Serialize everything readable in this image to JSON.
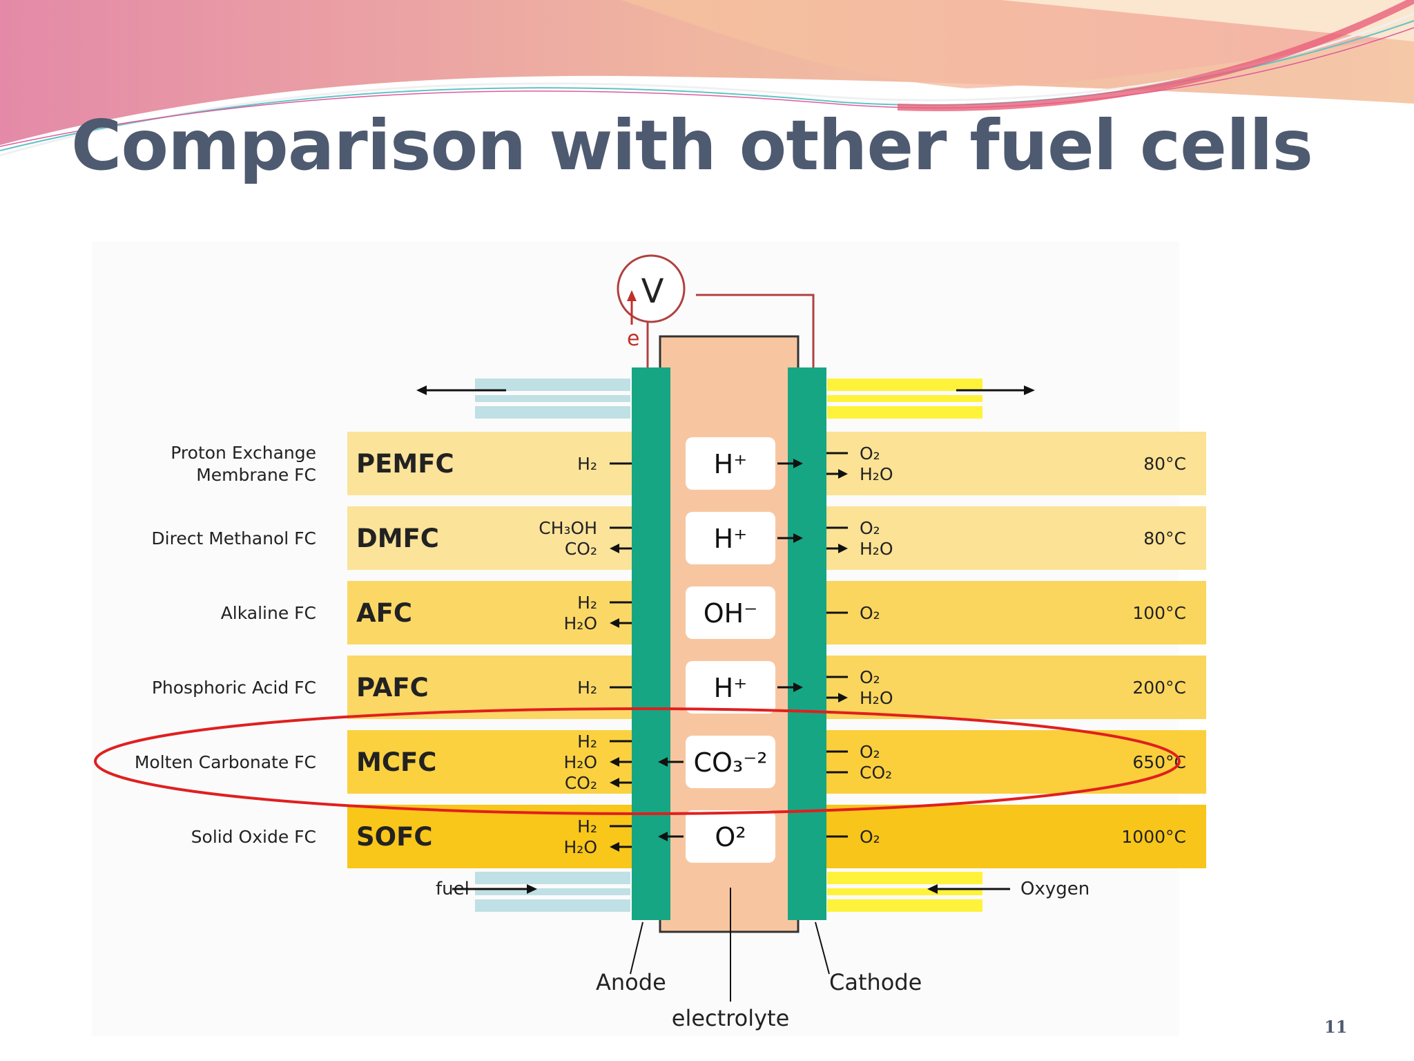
{
  "slide": {
    "title": "Comparison with other fuel cells",
    "page_number": "11"
  },
  "diagram": {
    "voltmeter_label": "V",
    "electron_label": "e",
    "fuel_label": "fuel",
    "oxygen_label": "Oxygen",
    "anode_label": "Anode",
    "cathode_label": "Cathode",
    "electrolyte_label": "electrolyte",
    "rows": [
      {
        "name_lines": [
          "Proton Exchange",
          "Membrane FC"
        ],
        "abbr": "PEMFC",
        "anode_species": [
          {
            "text": "H₂",
            "dir": "in"
          }
        ],
        "ion": "H⁺",
        "ion_dir": "right",
        "cathode_species": [
          {
            "text": "O₂",
            "dir": "in"
          },
          {
            "text": "H₂O",
            "dir": "out"
          }
        ],
        "temperature": "80°C"
      },
      {
        "name_lines": [
          "Direct Methanol FC"
        ],
        "abbr": "DMFC",
        "anode_species": [
          {
            "text": "CH₃OH",
            "dir": "in"
          },
          {
            "text": "CO₂",
            "dir": "out"
          }
        ],
        "ion": "H⁺",
        "ion_dir": "right",
        "cathode_species": [
          {
            "text": "O₂",
            "dir": "in"
          },
          {
            "text": "H₂O",
            "dir": "out"
          }
        ],
        "temperature": "80°C"
      },
      {
        "name_lines": [
          "Alkaline FC"
        ],
        "abbr": "AFC",
        "anode_species": [
          {
            "text": "H₂",
            "dir": "in"
          },
          {
            "text": "H₂O",
            "dir": "out"
          }
        ],
        "ion": "OH⁻",
        "ion_dir": "none",
        "cathode_species": [
          {
            "text": "O₂",
            "dir": "in"
          }
        ],
        "temperature": "100°C"
      },
      {
        "name_lines": [
          "Phosphoric Acid FC"
        ],
        "abbr": "PAFC",
        "anode_species": [
          {
            "text": "H₂",
            "dir": "in"
          }
        ],
        "ion": "H⁺",
        "ion_dir": "right",
        "cathode_species": [
          {
            "text": "O₂",
            "dir": "in"
          },
          {
            "text": "H₂O",
            "dir": "out"
          }
        ],
        "temperature": "200°C"
      },
      {
        "name_lines": [
          "Molten Carbonate FC"
        ],
        "abbr": "MCFC",
        "highlighted": true,
        "anode_species": [
          {
            "text": "H₂",
            "dir": "in"
          },
          {
            "text": "H₂O",
            "dir": "out"
          },
          {
            "text": "CO₂",
            "dir": "out"
          }
        ],
        "ion": "CO₃⁻²",
        "ion_dir": "left",
        "cathode_species": [
          {
            "text": "O₂",
            "dir": "in"
          },
          {
            "text": "CO₂",
            "dir": "in"
          }
        ],
        "temperature": "650°C"
      },
      {
        "name_lines": [
          "Solid Oxide FC"
        ],
        "abbr": "SOFC",
        "anode_species": [
          {
            "text": "H₂",
            "dir": "in"
          },
          {
            "text": "H₂O",
            "dir": "out"
          }
        ],
        "ion": "O²",
        "ion_dir": "left",
        "cathode_species": [
          {
            "text": "O₂",
            "dir": "in"
          }
        ],
        "temperature": "1000°C"
      }
    ],
    "colors": {
      "title": "#4e5a70",
      "electrode": "#17a683",
      "electrolyte": "#f7c6a0",
      "highlight_ellipse": "#e01f1f",
      "voltmeter": "#b04040"
    }
  }
}
